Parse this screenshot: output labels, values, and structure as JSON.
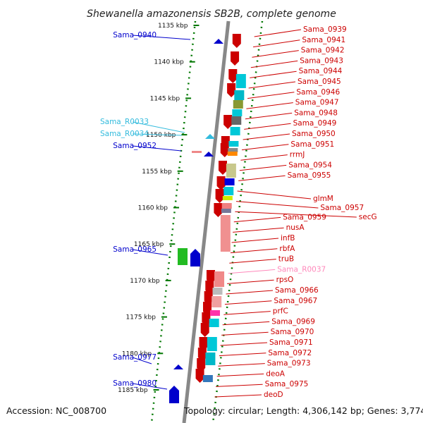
{
  "title": "Shewanella amazonensis SB2B, complete genome",
  "footer": {
    "accession": "Accession: NC_008700",
    "topology": "Topology: circular; Length: 4,306,142 bp; Genes: 3,774"
  },
  "colors": {
    "rna": "#33bbdd",
    "cds_plus": "#0000cc",
    "cds_minus": "#cc0000",
    "rrna": "#ff88bb",
    "backbone": "#888888",
    "ticks": "#007700"
  },
  "ticks": [
    {
      "label": "1135 kbp"
    },
    {
      "label": "1140 kbp"
    },
    {
      "label": "1145 kbp"
    },
    {
      "label": "1150 kbp"
    },
    {
      "label": "1155 kbp"
    },
    {
      "label": "1160 kbp"
    },
    {
      "label": "1165 kbp"
    },
    {
      "label": "1170 kbp"
    },
    {
      "label": "1175 kbp"
    },
    {
      "label": "1180 kbp"
    },
    {
      "label": "1185 kbp"
    }
  ],
  "left_labels": [
    {
      "text": "Sama_0940",
      "type": "cds_plus"
    },
    {
      "text": "Sama_R0033",
      "type": "rna"
    },
    {
      "text": "Sama_R0034",
      "type": "rna"
    },
    {
      "text": "Sama_0952",
      "type": "cds_plus"
    },
    {
      "text": "Sama_0965",
      "type": "cds_plus"
    },
    {
      "text": "Sama_0977",
      "type": "cds_plus"
    },
    {
      "text": "Sama_0980",
      "type": "cds_plus"
    }
  ],
  "right_labels": [
    {
      "text": "Sama_0939",
      "type": "cds_minus"
    },
    {
      "text": "Sama_0941",
      "type": "cds_minus"
    },
    {
      "text": "Sama_0942",
      "type": "cds_minus"
    },
    {
      "text": "Sama_0943",
      "type": "cds_minus"
    },
    {
      "text": "Sama_0944",
      "type": "cds_minus"
    },
    {
      "text": "Sama_0945",
      "type": "cds_minus"
    },
    {
      "text": "Sama_0946",
      "type": "cds_minus"
    },
    {
      "text": "Sama_0947",
      "type": "cds_minus"
    },
    {
      "text": "Sama_0948",
      "type": "cds_minus"
    },
    {
      "text": "Sama_0949",
      "type": "cds_minus"
    },
    {
      "text": "Sama_0950",
      "type": "cds_minus"
    },
    {
      "text": "Sama_0951",
      "type": "cds_minus"
    },
    {
      "text": "rrmJ",
      "type": "cds_minus"
    },
    {
      "text": "Sama_0954",
      "type": "cds_minus"
    },
    {
      "text": "Sama_0955",
      "type": "cds_minus"
    },
    {
      "text": "glmM",
      "type": "cds_minus"
    },
    {
      "text": "Sama_0957",
      "type": "cds_minus"
    },
    {
      "text": "secG",
      "type": "cds_minus"
    },
    {
      "text": "Sama_0959",
      "type": "cds_minus"
    },
    {
      "text": "nusA",
      "type": "cds_minus"
    },
    {
      "text": "infB",
      "type": "cds_minus"
    },
    {
      "text": "rbfA",
      "type": "cds_minus"
    },
    {
      "text": "truB",
      "type": "cds_minus"
    },
    {
      "text": "Sama_R0037",
      "type": "rrna"
    },
    {
      "text": "rpsO",
      "type": "cds_minus"
    },
    {
      "text": "Sama_0966",
      "type": "cds_minus"
    },
    {
      "text": "Sama_0967",
      "type": "cds_minus"
    },
    {
      "text": "prfC",
      "type": "cds_minus"
    },
    {
      "text": "Sama_0969",
      "type": "cds_minus"
    },
    {
      "text": "Sama_0970",
      "type": "cds_minus"
    },
    {
      "text": "Sama_0971",
      "type": "cds_minus"
    },
    {
      "text": "Sama_0972",
      "type": "cds_minus"
    },
    {
      "text": "Sama_0973",
      "type": "cds_minus"
    },
    {
      "text": "deoA",
      "type": "cds_minus"
    },
    {
      "text": "Sama_0975",
      "type": "cds_minus"
    },
    {
      "text": "deoD",
      "type": "cds_minus"
    }
  ]
}
